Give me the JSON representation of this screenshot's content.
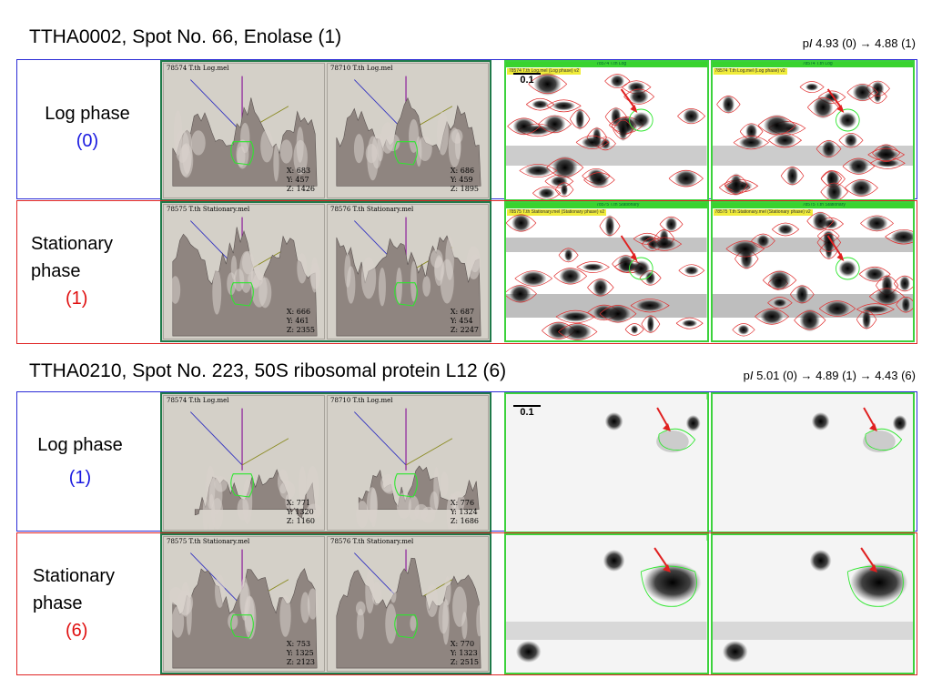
{
  "section1": {
    "title": "TTHA0002, Spot No. 66, Enolase (1)",
    "pi_prefix": "p",
    "pi_italic": "I",
    "pi_text": " 4.93 (0) → 4.88 (1)",
    "log_row": {
      "label_line1": "Log phase",
      "label_line2": "",
      "number": "(0)",
      "plot_left": {
        "file": "78574 T.th Log.mel",
        "x": "X: 683",
        "y": "Y: 457",
        "z": "Z: 1426"
      },
      "plot_right": {
        "file": "78710 T.th Log.mel",
        "x": "X: 686",
        "y": "Y: 459",
        "z": "Z: 1895"
      }
    },
    "stat_row": {
      "label_line1": "Stationary",
      "label_line2": "phase",
      "number": "(1)",
      "plot_left": {
        "file": "78575 T.th Stationary.mel",
        "x": "X: 666",
        "y": "Y: 461",
        "z": "Z: 2355"
      },
      "plot_right": {
        "file": "78576 T.th Stationary.mel",
        "x": "X: 687",
        "y": "Y: 454",
        "z": "Z: 2247"
      }
    },
    "scale_label": "0.1"
  },
  "section2": {
    "title": "TTHA0210, Spot No. 223, 50S ribosomal protein L12 (6)",
    "pi_prefix": "p",
    "pi_italic": "I",
    "pi_text": " 5.01 (0) → 4.89 (1) → 4.43 (6)",
    "log_row": {
      "label_line1": "Log phase",
      "label_line2": "",
      "number": "(1)",
      "plot_left": {
        "file": "78574 T.th Log.mel",
        "x": "X: 771",
        "y": "Y: 1320",
        "z": "Z: 1160"
      },
      "plot_right": {
        "file": "78710 T.th Log.mel",
        "x": "X: 776",
        "y": "Y: 1324",
        "z": "Z: 1686"
      }
    },
    "stat_row": {
      "label_line1": "Stationary",
      "label_line2": "phase",
      "number": "(6)",
      "plot_left": {
        "file": "78575 T.th Stationary.mel",
        "x": "X: 753",
        "y": "Y: 1325",
        "z": "Z: 2123"
      },
      "plot_right": {
        "file": "78576 T.th Stationary.mel",
        "x": "X: 770",
        "y": "Y: 1323",
        "z": "Z: 2515"
      }
    },
    "scale_label": "0.1"
  },
  "gel_labels": {
    "log_bar": "78574 T.th Log",
    "log_tag": "78574 T.th Log.mel (Log phase) v2",
    "stat_bar": "78575 T.th Stationary",
    "stat_tag": "78575 T.th Stationary.mel (Stationary phase) v2"
  },
  "colors": {
    "log_border": "#2b2bd6",
    "stat_border": "#e02424",
    "plot_frame": "#1f7a4a",
    "gel_frame": "#3cd23c",
    "arrow": "#e02020",
    "spot_outline": "#e03030"
  }
}
